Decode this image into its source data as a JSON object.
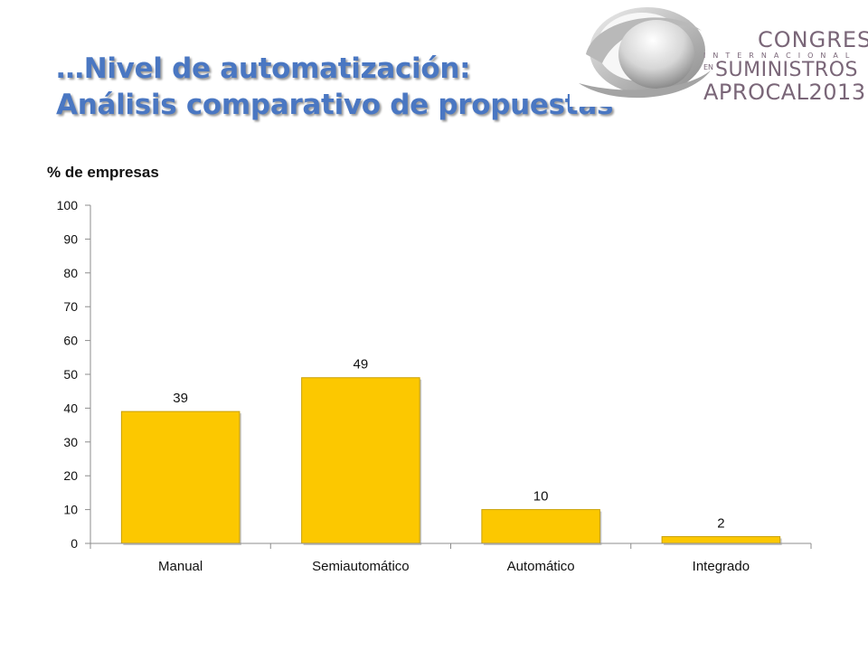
{
  "slide": {
    "title_line1": "…Nivel de automatización:",
    "title_line2": "Análisis comparativo de propuestas"
  },
  "logo": {
    "line1": "CONGRESO",
    "line2": "INTERNACIONAL",
    "line3a": "EN",
    "line3b": "SUMINISTROS",
    "line4": "APROCAL2013"
  },
  "colors": {
    "title": "#4a77c2",
    "bar": "#fcc800",
    "bar_edge": "#c9a000",
    "logo_text": "#7a6678"
  },
  "chart_data": {
    "type": "bar",
    "ylabel": "% de empresas",
    "categories": [
      "Manual",
      "Semiautomático",
      "Automático",
      "Integrado"
    ],
    "values": [
      39,
      49,
      10,
      2
    ],
    "data_labels": [
      "39",
      "49",
      "10",
      "2"
    ],
    "ylim": [
      0,
      100
    ],
    "yticks": [
      "0",
      "10",
      "20",
      "30",
      "40",
      "50",
      "60",
      "70",
      "80",
      "90",
      "100"
    ],
    "grid": false,
    "legend": "none"
  }
}
